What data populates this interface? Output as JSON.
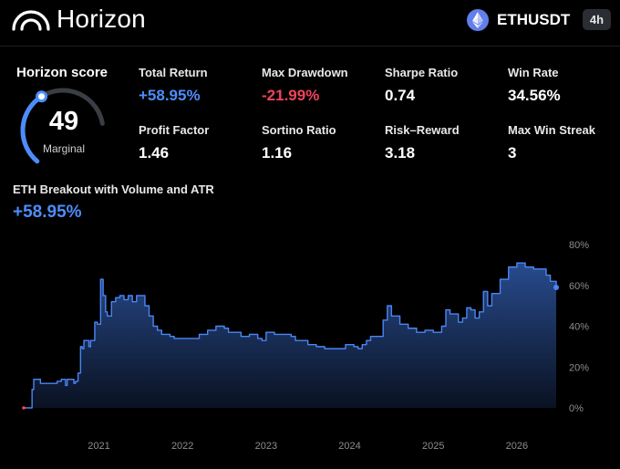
{
  "header": {
    "brand": "Horizon",
    "symbol": "ETHUSDT",
    "timeframe": "4h",
    "icons": {
      "logo": "horizon-arc-logo-icon",
      "asset": "ethereum-icon"
    }
  },
  "score": {
    "title": "Horizon score",
    "value": "49",
    "value_fraction": 0.49,
    "label": "Marginal"
  },
  "metrics": [
    {
      "label": "Total Return",
      "value": "+58.95%",
      "tone": "positive"
    },
    {
      "label": "Max Drawdown",
      "value": "-21.99%",
      "tone": "negative"
    },
    {
      "label": "Sharpe Ratio",
      "value": "0.74",
      "tone": "neutral"
    },
    {
      "label": "Win Rate",
      "value": "34.56%",
      "tone": "neutral"
    },
    {
      "label": "Profit Factor",
      "value": "1.46",
      "tone": "neutral"
    },
    {
      "label": "Sortino Ratio",
      "value": "1.16",
      "tone": "neutral"
    },
    {
      "label": "Risk–Reward",
      "value": "3.18",
      "tone": "neutral"
    },
    {
      "label": "Max Win Streak",
      "value": "3",
      "tone": "neutral"
    }
  ],
  "strategy": {
    "title": "ETH Breakout with Volume and ATR",
    "return": "+58.95%"
  },
  "colors": {
    "background": "#000000",
    "positive": "#4d8dfa",
    "negative": "#f0445a",
    "neutral": "#ffffff",
    "line": "#4a86f5",
    "gauge_track": "#3a3d44",
    "timeframe_badge": "#2a2d33"
  },
  "chart_data": {
    "type": "area",
    "xlabel": "",
    "ylabel": "",
    "x_ticks": [
      "2021",
      "2022",
      "2023",
      "2024",
      "2025",
      "2026"
    ],
    "y_ticks": [
      "0%",
      "20%",
      "40%",
      "60%",
      "80%"
    ],
    "ylim": [
      0,
      80
    ],
    "xlim": [
      2020.1,
      2026.47
    ],
    "grid": false,
    "y_axis_position": "right",
    "series": [
      {
        "x": [
          2020.1,
          2020.2,
          2020.22,
          2020.3,
          2020.45,
          2020.5,
          2020.55,
          2020.6,
          2020.62,
          2020.7,
          2020.72,
          2020.75,
          2020.78,
          2020.8,
          2020.82,
          2020.88,
          2020.9,
          2020.95,
          2020.98,
          2021.02,
          2021.05,
          2021.08,
          2021.1,
          2021.15,
          2021.2,
          2021.25,
          2021.3,
          2021.35,
          2021.4,
          2021.45,
          2021.5,
          2021.55,
          2021.6,
          2021.65,
          2021.7,
          2021.75,
          2021.8,
          2021.85,
          2021.9,
          2021.95,
          2022.0,
          2022.1,
          2022.2,
          2022.3,
          2022.4,
          2022.5,
          2022.55,
          2022.6,
          2022.7,
          2022.8,
          2022.9,
          2022.95,
          2023.0,
          2023.1,
          2023.2,
          2023.3,
          2023.35,
          2023.4,
          2023.5,
          2023.6,
          2023.7,
          2023.8,
          2023.9,
          2023.95,
          2024.0,
          2024.05,
          2024.1,
          2024.15,
          2024.2,
          2024.25,
          2024.3,
          2024.4,
          2024.45,
          2024.5,
          2024.6,
          2024.7,
          2024.8,
          2024.85,
          2024.9,
          2025.0,
          2025.1,
          2025.15,
          2025.2,
          2025.3,
          2025.35,
          2025.4,
          2025.45,
          2025.5,
          2025.55,
          2025.6,
          2025.65,
          2025.7,
          2025.8,
          2025.9,
          2026.0,
          2026.1,
          2026.2,
          2026.3,
          2026.35,
          2026.4,
          2026.47
        ],
        "y": [
          0,
          9,
          14,
          12,
          12,
          13,
          14,
          11,
          14,
          12,
          13,
          17,
          30,
          29,
          33,
          30,
          33,
          42,
          41,
          63,
          55,
          47,
          45,
          52,
          54,
          55,
          53,
          55,
          52,
          55,
          55,
          50,
          45,
          40,
          38,
          36,
          36,
          35,
          34,
          34,
          34,
          34,
          36,
          38,
          40,
          39,
          37,
          37,
          35,
          36,
          34,
          33,
          37,
          36,
          36,
          35,
          33,
          33,
          31,
          30,
          29,
          29,
          29,
          31,
          31,
          30,
          29,
          31,
          33,
          35,
          35,
          43,
          50,
          45,
          41,
          39,
          37,
          37,
          38,
          37,
          40,
          48,
          46,
          42,
          44,
          49,
          48,
          44,
          47,
          57,
          50,
          56,
          63,
          69,
          71,
          69,
          68,
          68,
          65,
          62,
          59
        ]
      }
    ]
  }
}
